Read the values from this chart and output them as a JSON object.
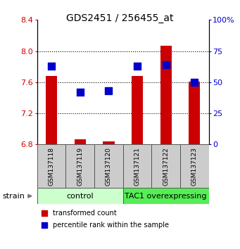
{
  "title": "GDS2451 / 256455_at",
  "samples": [
    "GSM137118",
    "GSM137119",
    "GSM137120",
    "GSM137121",
    "GSM137122",
    "GSM137123"
  ],
  "group_labels": [
    "control",
    "TAC1 overexpressing"
  ],
  "transformed_counts": [
    7.68,
    6.87,
    6.84,
    7.68,
    8.07,
    7.61
  ],
  "percentile_ranks": [
    63,
    42,
    43,
    63,
    64,
    50
  ],
  "ylim": [
    6.8,
    8.4
  ],
  "yticks_left": [
    6.8,
    7.2,
    7.6,
    8.0,
    8.4
  ],
  "yticks_right": [
    0,
    25,
    50,
    75,
    100
  ],
  "right_ylim": [
    0,
    100
  ],
  "bar_color": "#cc0000",
  "dot_color": "#0000cc",
  "bar_width": 0.4,
  "dot_size": 45,
  "control_bg": "#ccffcc",
  "tac1_bg": "#55ee55",
  "sample_box_bg": "#cccccc",
  "ylabel_left_color": "#cc0000",
  "ylabel_right_color": "#0000cc",
  "strain_label": "strain",
  "legend_items": [
    "transformed count",
    "percentile rank within the sample"
  ],
  "gridline_yticks": [
    7.2,
    7.6,
    8.0
  ]
}
